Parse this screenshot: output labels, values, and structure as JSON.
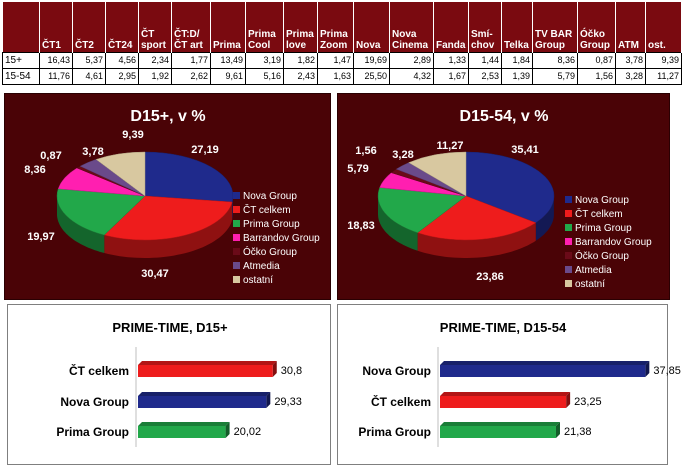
{
  "table": {
    "headers": [
      "ČT1",
      "ČT2",
      "ČT24",
      "ČT\nsport",
      "ČT:D/\nČT art",
      "Prima",
      "Prima\nCool",
      "Prima\nlove",
      "Prima\nZoom",
      "Nova",
      "Nova\nCinema",
      "Fanda",
      "Smí-\nchov",
      "Telka",
      "TV BAR\nGroup",
      "Óčko\nGroup",
      "ATM",
      "ost."
    ],
    "rows": [
      {
        "label": "15+",
        "values": [
          "16,43",
          "5,37",
          "4,56",
          "2,34",
          "1,77",
          "13,49",
          "3,19",
          "1,82",
          "1,47",
          "19,69",
          "2,89",
          "1,33",
          "1,44",
          "1,84",
          "8,36",
          "0,87",
          "3,78",
          "9,39"
        ]
      },
      {
        "label": "15-54",
        "values": [
          "11,76",
          "4,61",
          "2,95",
          "1,92",
          "2,62",
          "9,61",
          "5,16",
          "2,43",
          "1,63",
          "25,50",
          "4,32",
          "1,67",
          "2,53",
          "1,39",
          "5,79",
          "1,56",
          "3,28",
          "11,27"
        ]
      }
    ]
  },
  "colors": {
    "nova": "#1f2a8c",
    "ct": "#ee1c1c",
    "prima": "#22a84a",
    "barrandov": "#ff1fb0",
    "ocko": "#6a0a18",
    "atmedia": "#6a4a8a",
    "ostatni": "#d8c8a0",
    "panel_dark": "#4a0306",
    "table_header": "#7a0a10"
  },
  "chart_data": [
    {
      "type": "pie",
      "title": "D15+, v %",
      "categories": [
        "Nova Group",
        "ČT celkem",
        "Prima Group",
        "Barrandov Group",
        "Óčko Group",
        "Atmedia",
        "ostatní"
      ],
      "values": [
        27.19,
        30.47,
        19.97,
        8.36,
        0.87,
        3.78,
        9.39
      ],
      "labels": [
        "27,19",
        "30,47",
        "19,97",
        "8,36",
        "0,87",
        "3,78",
        "9,39"
      ],
      "legend": "right"
    },
    {
      "type": "pie",
      "title": "D15-54, v %",
      "categories": [
        "Nova Group",
        "ČT celkem",
        "Prima Group",
        "Barrandov Group",
        "Óčko Group",
        "Atmedia",
        "ostatní"
      ],
      "values": [
        35.41,
        23.86,
        18.83,
        5.79,
        1.56,
        3.28,
        11.27
      ],
      "labels": [
        "35,41",
        "23,86",
        "18,83",
        "5,79",
        "1,56",
        "3,28",
        "11,27"
      ],
      "legend": "right"
    },
    {
      "type": "bar",
      "orientation": "horizontal",
      "title": "PRIME-TIME, D15+",
      "categories": [
        "ČT celkem",
        "Nova Group",
        "Prima Group"
      ],
      "values": [
        30.8,
        29.33,
        20.02
      ],
      "labels": [
        "30,8",
        "29,33",
        "20,02"
      ],
      "series_colors": [
        "ct",
        "nova",
        "prima"
      ],
      "xlim": [
        0,
        40
      ]
    },
    {
      "type": "bar",
      "orientation": "horizontal",
      "title": "PRIME-TIME, D15-54",
      "categories": [
        "Nova Group",
        "ČT celkem",
        "Prima Group"
      ],
      "values": [
        37.85,
        23.25,
        21.38
      ],
      "labels": [
        "37,85",
        "23,25",
        "21,38"
      ],
      "series_colors": [
        "nova",
        "ct",
        "prima"
      ],
      "xlim": [
        0,
        40
      ]
    }
  ]
}
